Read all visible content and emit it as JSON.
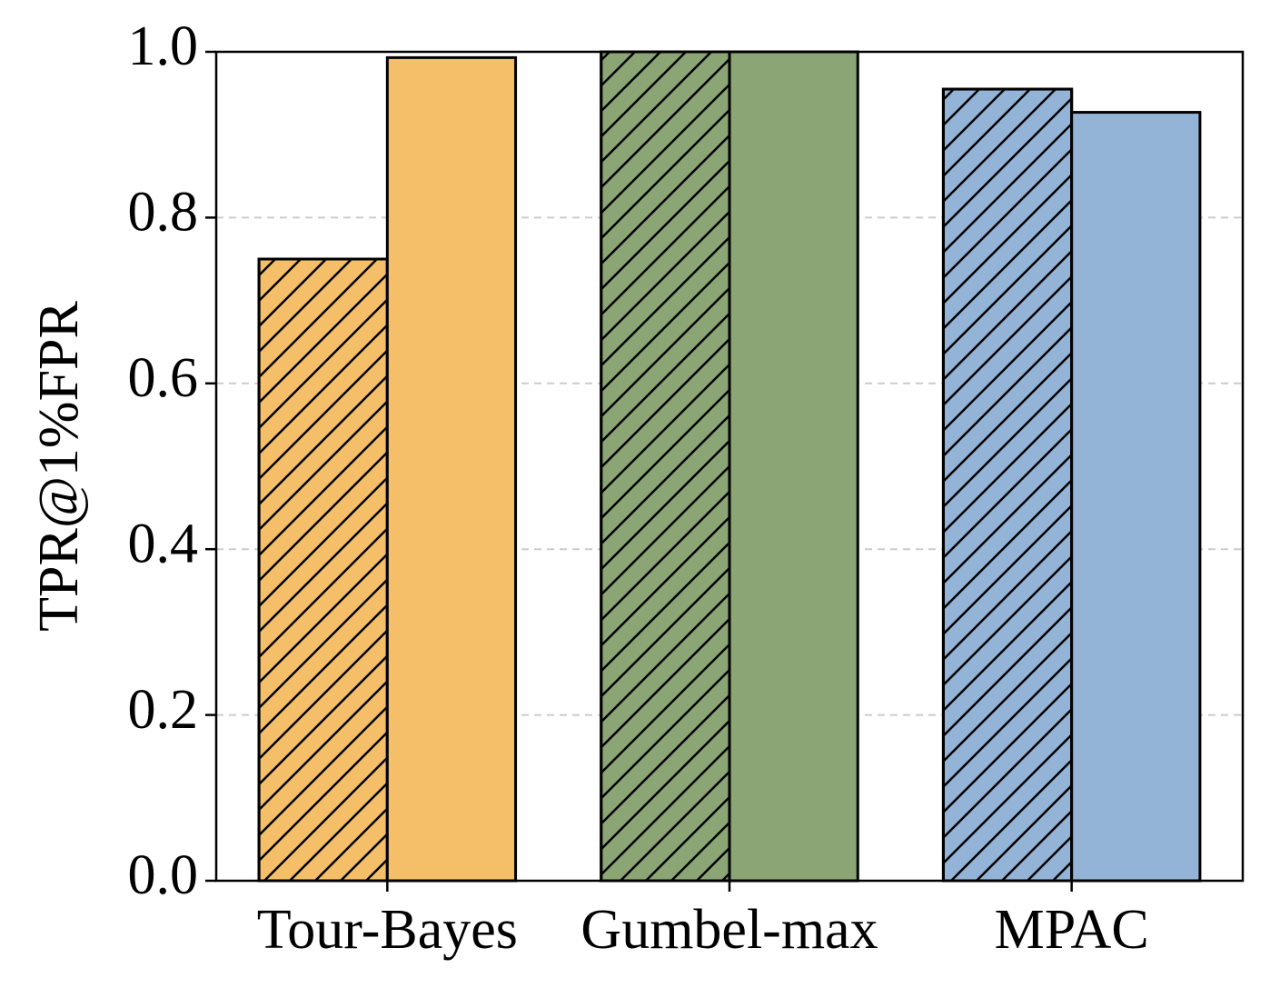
{
  "chart_data": {
    "type": "bar",
    "y_label": "TPR@1%FPR",
    "categories": [
      "Tour-Bayes",
      "Gumbel-max",
      "MPAC"
    ],
    "category_colors": [
      "#f5bf69",
      "#8ba574",
      "#93b3d7"
    ],
    "series": [
      {
        "values": [
          0.75,
          1.0,
          0.955
        ],
        "hatch": "//"
      },
      {
        "values": [
          0.993,
          1.0,
          0.927
        ]
      }
    ],
    "ylim": [
      0,
      1
    ],
    "yticks": [
      {
        "value": 0,
        "label": "0.0"
      },
      0.2,
      0.4,
      0.6,
      0.8,
      {
        "value": 1,
        "label": "1.0"
      }
    ],
    "grid": true
  }
}
